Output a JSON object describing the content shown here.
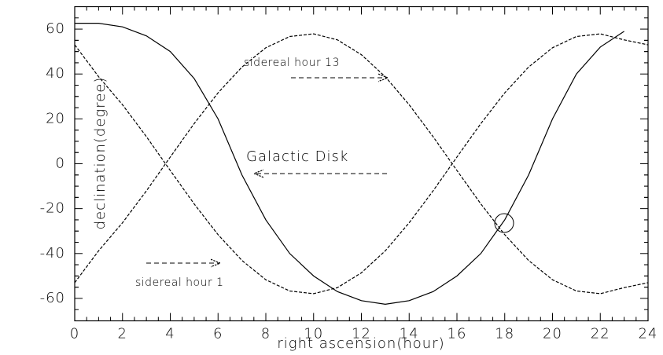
{
  "chart_data": {
    "type": "line",
    "x_label": "right ascension(hour)",
    "y_label": "declination(degree)",
    "x": [
      0,
      1,
      2,
      3,
      4,
      5,
      6,
      7,
      8,
      9,
      10,
      11,
      12,
      13,
      14,
      15,
      16,
      17,
      18,
      19,
      20,
      21,
      22,
      23,
      24
    ],
    "series": [
      {
        "name": "Galactic Disk",
        "color": "#000000",
        "line_style": "solid",
        "values": [
          62.6,
          62.6,
          61,
          57,
          50,
          38,
          20,
          -5,
          -25,
          -40,
          -50,
          -57,
          -61,
          -62.6,
          -61,
          -57,
          -50,
          -40,
          -25,
          -5,
          20,
          40,
          52,
          59,
          null
        ]
      },
      {
        "name": "sidereal hour 13",
        "color": "#000000",
        "line_style": "dashed",
        "values": [
          -53,
          -38.8,
          -26.3,
          -12.1,
          3.0,
          17.9,
          31.6,
          43.1,
          51.7,
          56.7,
          57.9,
          55.2,
          48.6,
          38.8,
          26.3,
          12.1,
          -3.0,
          -17.9,
          -31.6,
          -43.1,
          -51.7,
          -56.7,
          -57.9,
          -55.2,
          -53
        ]
      },
      {
        "name": "sidereal hour 1",
        "color": "#000000",
        "line_style": "dashed",
        "values": [
          53,
          38.8,
          26.3,
          12.1,
          -3.0,
          -17.9,
          -31.6,
          -43.1,
          -51.7,
          -56.7,
          -57.9,
          -55.2,
          -48.6,
          -38.8,
          -26.3,
          -12.1,
          3.0,
          17.9,
          31.6,
          43.1,
          51.7,
          56.7,
          57.9,
          55.2,
          53
        ]
      }
    ],
    "xlim": [
      0,
      24
    ],
    "xticks": [
      0,
      2,
      4,
      6,
      8,
      10,
      12,
      14,
      16,
      18,
      20,
      22,
      24
    ],
    "ylim": [
      -70,
      70
    ],
    "yticks": [
      -60,
      -40,
      -20,
      0,
      20,
      40,
      60
    ],
    "grid": false
  }
}
